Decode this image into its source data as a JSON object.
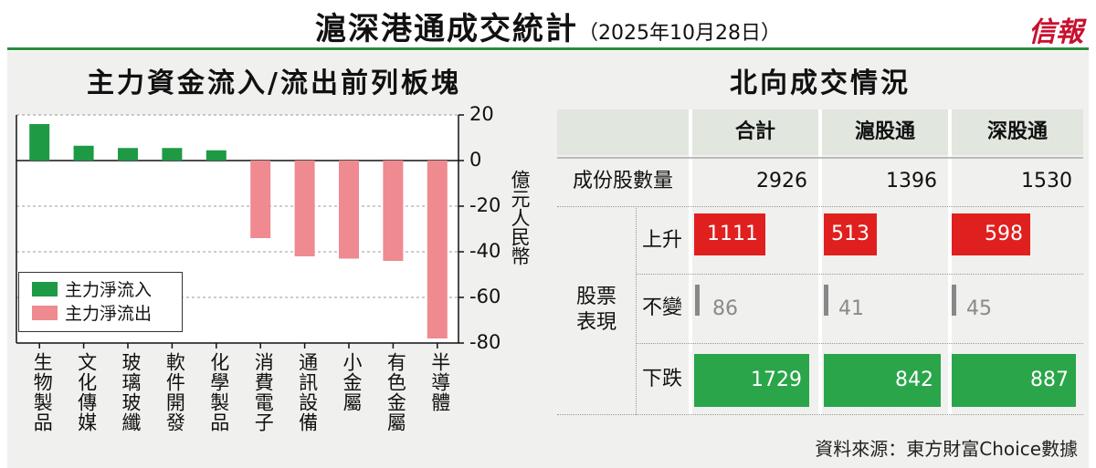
{
  "header": {
    "title": "滬深港通成交統計",
    "date": "（2025年10月28日）",
    "logo": "信報"
  },
  "left_chart": {
    "title": "主力資金流入/流出前列板塊",
    "unit": "億元人民幣"
  },
  "chart_data": {
    "type": "bar",
    "title": "主力資金流入/流出前列板塊",
    "ylabel": "億元人民幣",
    "categories": [
      "生物製品",
      "文化傳媒",
      "玻璃玻纖",
      "軟件開發",
      "化學製品",
      "消費電子",
      "通訊設備",
      "小金屬",
      "有色金屬",
      "半導體"
    ],
    "values": [
      16,
      6.5,
      5.5,
      5.5,
      4.5,
      -34,
      -42,
      -43,
      -44,
      -78
    ],
    "ylim": [
      -80,
      20
    ],
    "yticks": [
      "20",
      "0",
      "-20",
      "-40",
      "-60",
      "-80"
    ],
    "legend": [
      "主力淨流入",
      "主力淨流出"
    ],
    "legend_position": "bottom-left",
    "colors": {
      "inflow": "#1e9a45",
      "outflow": "#ee8a90"
    },
    "grid": "dashed horizontal"
  },
  "table": {
    "title": "北向成交情況",
    "columns": [
      "合計",
      "滬股通",
      "深股通"
    ],
    "constituents_label": "成份股數量",
    "constituents": [
      "2926",
      "1396",
      "1530"
    ],
    "group_label": [
      "股票",
      "表現"
    ],
    "rows": [
      {
        "label": "上升",
        "values": [
          "1111",
          "513",
          "598"
        ],
        "color": "#e0201f"
      },
      {
        "label": "不變",
        "values": [
          "86",
          "41",
          "45"
        ],
        "color": "#888888"
      },
      {
        "label": "下跌",
        "values": [
          "1729",
          "842",
          "887"
        ],
        "color": "#2aa54a"
      }
    ]
  },
  "source": "資料來源：東方財富Choice數據"
}
